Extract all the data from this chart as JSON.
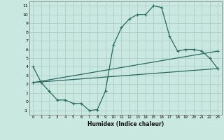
{
  "xlabel": "Humidex (Indice chaleur)",
  "bg_color": "#c8e8e0",
  "grid_color": "#b0ccc8",
  "line_color": "#2a6a60",
  "xlim": [
    -0.5,
    23.5
  ],
  "ylim": [
    -1.5,
    11.5
  ],
  "xticks": [
    0,
    1,
    2,
    3,
    4,
    5,
    6,
    7,
    8,
    9,
    10,
    11,
    12,
    13,
    14,
    15,
    16,
    17,
    18,
    19,
    20,
    21,
    22,
    23
  ],
  "yticks": [
    -1,
    0,
    1,
    2,
    3,
    4,
    5,
    6,
    7,
    8,
    9,
    10,
    11
  ],
  "line1_x": [
    0,
    1,
    2,
    3,
    4,
    5,
    6,
    7,
    8,
    9,
    10,
    11,
    12,
    13,
    14,
    15,
    16,
    17,
    18,
    19,
    20,
    21,
    22,
    23
  ],
  "line1_y": [
    4.0,
    2.2,
    1.2,
    0.2,
    0.2,
    -0.2,
    -0.2,
    -1.0,
    -0.9,
    1.2,
    6.5,
    8.5,
    9.5,
    10.0,
    10.0,
    11.0,
    10.8,
    7.5,
    5.8,
    6.0,
    6.0,
    5.8,
    5.0,
    3.8
  ],
  "line2_x": [
    0,
    23
  ],
  "line2_y": [
    2.2,
    3.8
  ],
  "line3_x": [
    0,
    23
  ],
  "line3_y": [
    2.2,
    5.8
  ]
}
